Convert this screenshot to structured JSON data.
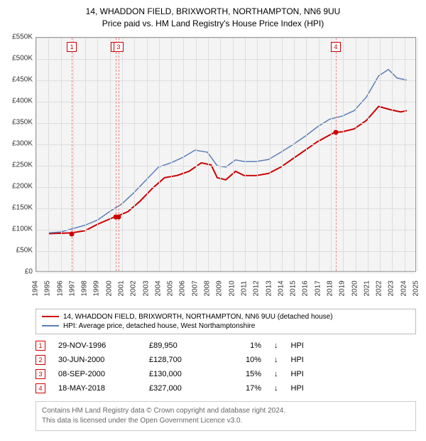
{
  "title": {
    "line1": "14, WHADDON FIELD, BRIXWORTH, NORTHAMPTON, NN6 9UU",
    "line2": "Price paid vs. HM Land Registry's House Price Index (HPI)"
  },
  "chart": {
    "type": "line",
    "plot_bg": "#f4f4f4",
    "grid_color": "#dddddd",
    "border_color": "#999999",
    "x": {
      "min": 1994,
      "max": 2025,
      "step": 1
    },
    "y": {
      "min": 0,
      "max": 550000,
      "step": 50000,
      "prefix": "£",
      "suffix": "K",
      "divisor": 1000
    },
    "series": [
      {
        "name": "property",
        "color": "#cc0000",
        "width": 2,
        "points": [
          [
            1995.0,
            88000
          ],
          [
            1996.9,
            89950
          ],
          [
            1998.0,
            95000
          ],
          [
            1999.0,
            110000
          ],
          [
            2000.5,
            128700
          ],
          [
            2000.7,
            130000
          ],
          [
            2001.5,
            140000
          ],
          [
            2002.5,
            165000
          ],
          [
            2003.5,
            195000
          ],
          [
            2004.5,
            220000
          ],
          [
            2005.5,
            225000
          ],
          [
            2006.5,
            235000
          ],
          [
            2007.5,
            255000
          ],
          [
            2008.3,
            250000
          ],
          [
            2008.8,
            220000
          ],
          [
            2009.5,
            215000
          ],
          [
            2010.3,
            235000
          ],
          [
            2011.0,
            225000
          ],
          [
            2012.0,
            225000
          ],
          [
            2013.0,
            230000
          ],
          [
            2014.0,
            245000
          ],
          [
            2015.0,
            265000
          ],
          [
            2016.0,
            285000
          ],
          [
            2017.0,
            305000
          ],
          [
            2018.4,
            327000
          ],
          [
            2019.0,
            328000
          ],
          [
            2020.0,
            335000
          ],
          [
            2021.0,
            355000
          ],
          [
            2022.0,
            388000
          ],
          [
            2023.0,
            380000
          ],
          [
            2023.8,
            375000
          ],
          [
            2024.3,
            378000
          ]
        ]
      },
      {
        "name": "hpi",
        "color": "#5b7fb8",
        "width": 1.5,
        "points": [
          [
            1995.0,
            90000
          ],
          [
            1996.0,
            92000
          ],
          [
            1997.0,
            100000
          ],
          [
            1998.0,
            108000
          ],
          [
            1999.0,
            120000
          ],
          [
            2000.0,
            140000
          ],
          [
            2001.0,
            158000
          ],
          [
            2002.0,
            185000
          ],
          [
            2003.0,
            215000
          ],
          [
            2004.0,
            245000
          ],
          [
            2005.0,
            255000
          ],
          [
            2006.0,
            268000
          ],
          [
            2007.0,
            285000
          ],
          [
            2008.0,
            280000
          ],
          [
            2008.8,
            248000
          ],
          [
            2009.5,
            245000
          ],
          [
            2010.3,
            262000
          ],
          [
            2011.0,
            258000
          ],
          [
            2012.0,
            258000
          ],
          [
            2013.0,
            263000
          ],
          [
            2014.0,
            280000
          ],
          [
            2015.0,
            298000
          ],
          [
            2016.0,
            318000
          ],
          [
            2017.0,
            340000
          ],
          [
            2018.0,
            358000
          ],
          [
            2019.0,
            365000
          ],
          [
            2020.0,
            378000
          ],
          [
            2021.0,
            410000
          ],
          [
            2022.0,
            460000
          ],
          [
            2022.8,
            475000
          ],
          [
            2023.5,
            455000
          ],
          [
            2024.3,
            450000
          ]
        ]
      }
    ],
    "markers": [
      {
        "n": "1",
        "year": 1996.9,
        "price": 89950
      },
      {
        "n": "2",
        "year": 2000.5,
        "price": 128700
      },
      {
        "n": "3",
        "year": 2000.7,
        "price": 130000
      },
      {
        "n": "4",
        "year": 2018.4,
        "price": 327000
      }
    ]
  },
  "legend": {
    "items": [
      {
        "color": "#cc0000",
        "label": "14, WHADDON FIELD, BRIXWORTH, NORTHAMPTON, NN6 9UU (detached house)"
      },
      {
        "color": "#5b7fb8",
        "label": "HPI: Average price, detached house, West Northamptonshire"
      }
    ]
  },
  "events": [
    {
      "n": "1",
      "date": "29-NOV-1996",
      "price": "£89,950",
      "pct": "1%",
      "arrow": "↓",
      "vs": "HPI"
    },
    {
      "n": "2",
      "date": "30-JUN-2000",
      "price": "£128,700",
      "pct": "10%",
      "arrow": "↓",
      "vs": "HPI"
    },
    {
      "n": "3",
      "date": "08-SEP-2000",
      "price": "£130,000",
      "pct": "15%",
      "arrow": "↓",
      "vs": "HPI"
    },
    {
      "n": "4",
      "date": "18-MAY-2018",
      "price": "£327,000",
      "pct": "17%",
      "arrow": "↓",
      "vs": "HPI"
    }
  ],
  "footer": {
    "line1": "Contains HM Land Registry data © Crown copyright and database right 2024.",
    "line2": "This data is licensed under the Open Government Licence v3.0."
  }
}
